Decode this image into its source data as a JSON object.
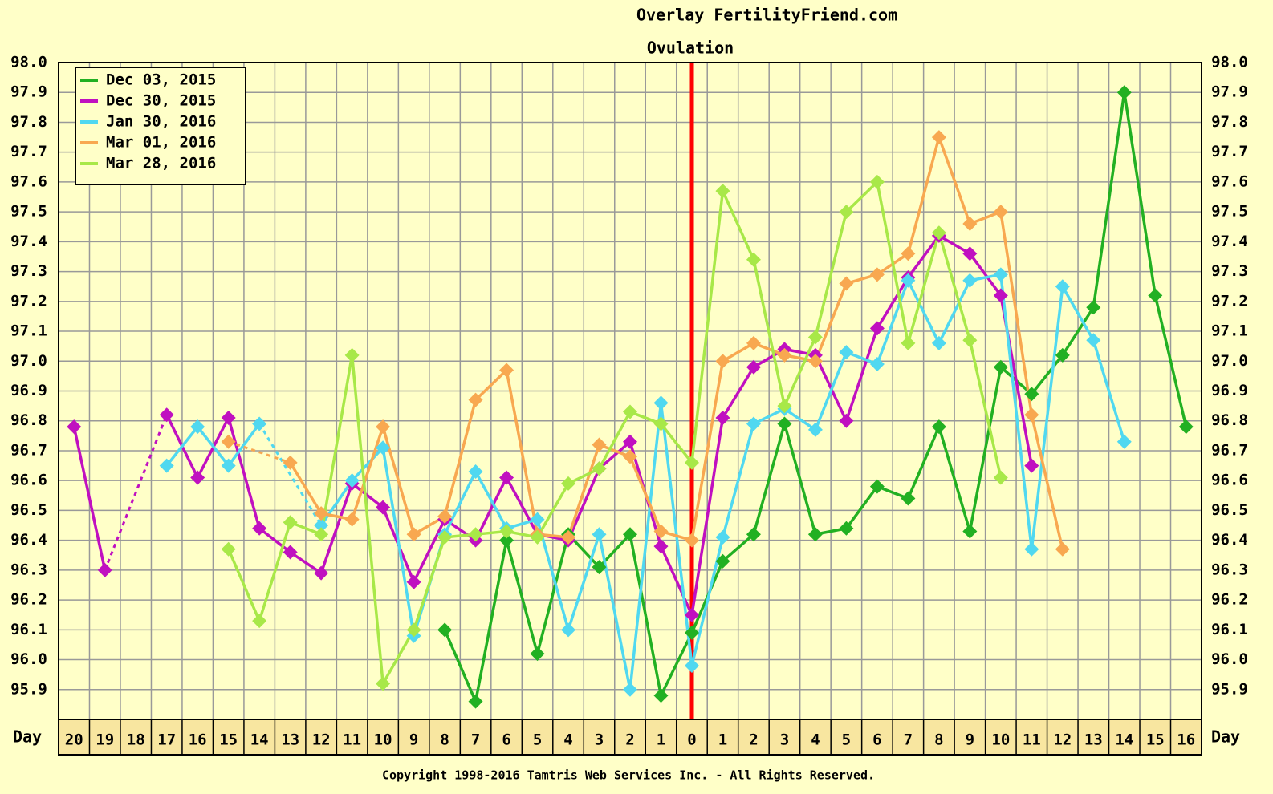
{
  "chart_data": {
    "type": "line",
    "title": "Overlay FertilityFriend.com",
    "annotation": "Ovulation",
    "x_label": "Day",
    "copyright": "Copyright 1998-2016 Tamtris Web Services Inc. - All Rights Reserved.",
    "categories": [
      "20",
      "19",
      "18",
      "17",
      "16",
      "15",
      "14",
      "13",
      "12",
      "11",
      "10",
      "9",
      "8",
      "7",
      "6",
      "5",
      "4",
      "3",
      "2",
      "1",
      "0",
      "1",
      "2",
      "3",
      "4",
      "5",
      "6",
      "7",
      "8",
      "9",
      "10",
      "11",
      "12",
      "13",
      "14",
      "15",
      "16"
    ],
    "ylim": [
      95.8,
      98.0
    ],
    "yticks": [
      95.9,
      {
        "value": 96.0,
        "label": "96.0"
      },
      96.1,
      96.2,
      96.3,
      96.4,
      96.5,
      96.6,
      96.7,
      96.8,
      96.9,
      {
        "value": 97.0,
        "label": "97.0"
      },
      97.1,
      97.2,
      97.3,
      97.4,
      97.5,
      97.6,
      97.7,
      97.8,
      97.9,
      {
        "value": 98.0,
        "label": "98.0"
      }
    ],
    "grid": true,
    "legend": "upper left",
    "series": [
      {
        "name": "Dec 03, 2015",
        "color": "#22b022",
        "values": [
          null,
          null,
          null,
          null,
          null,
          null,
          null,
          null,
          null,
          null,
          null,
          null,
          96.1,
          95.86,
          96.4,
          96.02,
          96.42,
          96.31,
          96.42,
          95.88,
          96.09,
          96.33,
          96.42,
          96.79,
          96.42,
          96.44,
          96.58,
          96.54,
          96.78,
          96.43,
          96.98,
          96.89,
          97.02,
          97.18,
          97.9,
          97.22,
          96.78
        ]
      },
      {
        "name": "Dec 30, 2015",
        "color": "#c010c0",
        "values": [
          96.78,
          96.3,
          null,
          96.82,
          96.61,
          96.81,
          96.44,
          96.36,
          96.29,
          96.59,
          96.51,
          96.26,
          96.47,
          96.4,
          96.61,
          96.42,
          96.4,
          96.64,
          96.73,
          96.38,
          96.15,
          96.81,
          96.98,
          97.04,
          97.02,
          96.8,
          97.11,
          97.28,
          97.42,
          97.36,
          97.22,
          96.65,
          null,
          null,
          null,
          null,
          null
        ]
      },
      {
        "name": "Jan 30, 2016",
        "color": "#50d8f0",
        "values": [
          null,
          null,
          null,
          96.65,
          96.78,
          96.65,
          96.79,
          null,
          96.45,
          96.6,
          96.71,
          96.08,
          96.42,
          96.63,
          96.44,
          96.47,
          96.1,
          96.42,
          95.9,
          96.86,
          95.98,
          96.41,
          96.79,
          96.84,
          96.77,
          97.03,
          96.99,
          97.27,
          97.06,
          97.27,
          97.29,
          96.37,
          97.25,
          97.07,
          96.73,
          null,
          null
        ]
      },
      {
        "name": "Mar 01, 2016",
        "color": "#f8a850",
        "values": [
          null,
          null,
          null,
          null,
          null,
          96.73,
          null,
          96.66,
          96.49,
          96.47,
          96.78,
          96.42,
          96.48,
          96.87,
          96.97,
          96.42,
          96.41,
          96.72,
          96.68,
          96.43,
          96.4,
          97.0,
          97.06,
          97.02,
          97.0,
          97.26,
          97.29,
          97.36,
          97.75,
          97.46,
          97.5,
          96.82,
          96.37,
          null,
          null,
          null,
          null
        ]
      },
      {
        "name": "Mar 28, 2016",
        "color": "#a8e848",
        "values": [
          null,
          null,
          null,
          null,
          null,
          96.37,
          96.13,
          96.46,
          96.42,
          97.02,
          95.92,
          96.1,
          96.41,
          96.42,
          96.43,
          96.41,
          96.59,
          96.64,
          96.83,
          96.79,
          96.66,
          97.57,
          97.34,
          96.85,
          97.08,
          97.5,
          97.6,
          97.06,
          97.43,
          97.07,
          96.61,
          null,
          null,
          null,
          null,
          null,
          null
        ]
      }
    ]
  }
}
